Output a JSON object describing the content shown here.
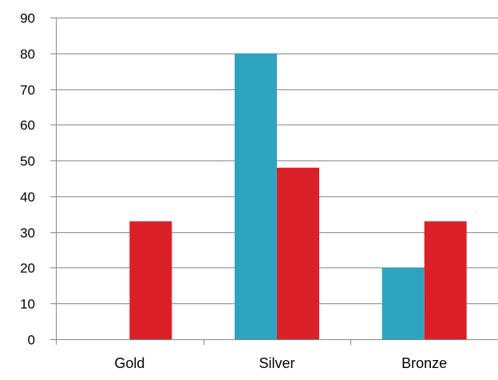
{
  "chart_data": {
    "type": "bar",
    "title": "",
    "xlabel": "",
    "ylabel": "",
    "categories": [
      "Gold",
      "Silver",
      "Bronze"
    ],
    "series": [
      {
        "values": [
          0,
          80,
          20
        ],
        "color": "#2ea5c0"
      },
      {
        "values": [
          33,
          48,
          33
        ],
        "color": "#dc2028"
      }
    ],
    "ylim": [
      0,
      90
    ],
    "yticks": [
      0,
      10,
      20,
      30,
      40,
      50,
      60,
      70,
      80,
      90
    ],
    "grid": true,
    "legend": "none",
    "gridline_color": "#888888"
  }
}
